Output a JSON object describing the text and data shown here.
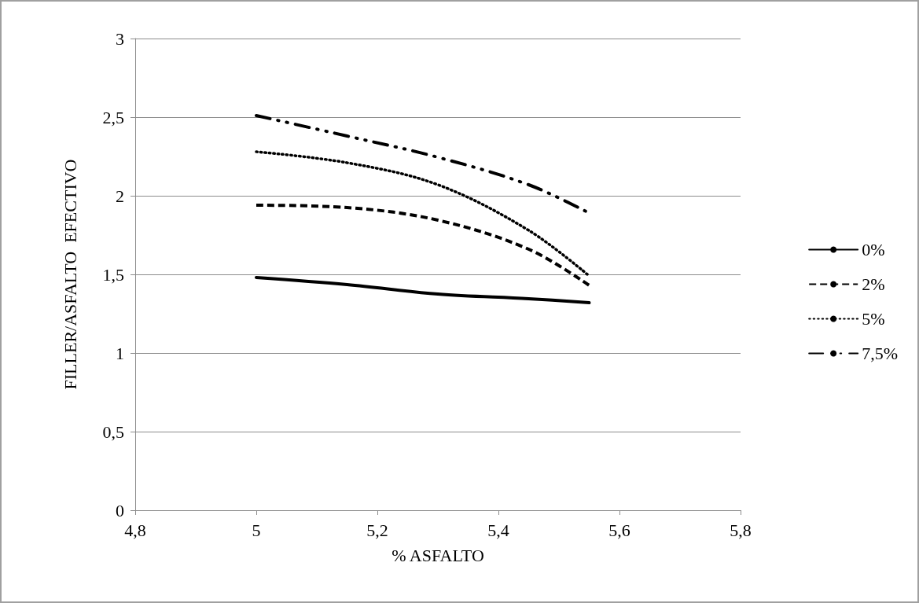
{
  "chart_data": {
    "type": "line",
    "xlabel": "% ASFALTO",
    "ylabel": "FILLER/ASFALTO  EFECTIVO",
    "series": [
      {
        "name": "0%",
        "color": "#000000",
        "line_style": "solid",
        "x": [
          5,
          5.15,
          5.3,
          5.45,
          5.55
        ],
        "values": [
          1.48,
          1.435,
          1.375,
          1.345,
          1.32
        ]
      },
      {
        "name": "2%",
        "color": "#000000",
        "line_style": "dashed",
        "x": [
          5,
          5.15,
          5.3,
          5.45,
          5.55
        ],
        "values": [
          1.94,
          1.925,
          1.845,
          1.66,
          1.43
        ]
      },
      {
        "name": "5%",
        "color": "#000000",
        "line_style": "dotted",
        "x": [
          5,
          5.15,
          5.3,
          5.45,
          5.55
        ],
        "values": [
          2.28,
          2.21,
          2.07,
          1.78,
          1.49
        ]
      },
      {
        "name": "7,5%",
        "color": "#000000",
        "line_style": "dashdot",
        "x": [
          5,
          5.15,
          5.3,
          5.45,
          5.55
        ],
        "values": [
          2.51,
          2.38,
          2.245,
          2.07,
          1.89
        ]
      }
    ],
    "xlim": [
      4.8,
      5.8
    ],
    "xticks": [
      {
        "value": 4.8,
        "label": "4,8"
      },
      5,
      {
        "value": 5.2,
        "label": "5,2"
      },
      {
        "value": 5.4,
        "label": "5,4"
      },
      {
        "value": 5.6,
        "label": "5,6"
      },
      {
        "value": 5.8,
        "label": "5,8"
      }
    ],
    "ylim": [
      0,
      3
    ],
    "yticks": [
      0,
      {
        "value": 0.5,
        "label": "0,5"
      },
      1,
      {
        "value": 1.5,
        "label": "1,5"
      },
      2,
      {
        "value": 2.5,
        "label": "2,5"
      },
      3
    ],
    "grid": "y",
    "legend": "right",
    "marker": "none"
  }
}
